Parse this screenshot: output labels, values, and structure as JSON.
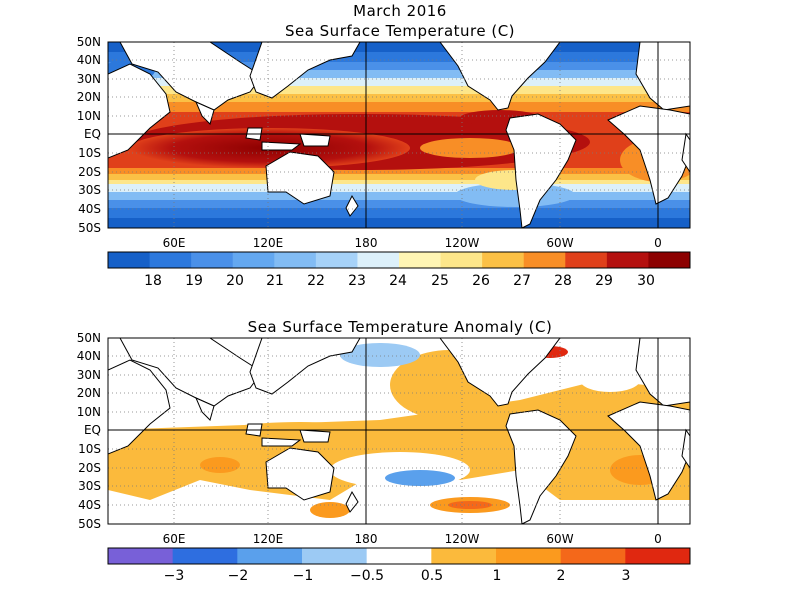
{
  "figure": {
    "month": "March 2016"
  },
  "maps": [
    {
      "id": "sst",
      "title": "Sea Surface Temperature (C)",
      "lat_labels": [
        "50N",
        "40N",
        "30N",
        "20N",
        "10N",
        "EQ",
        "10S",
        "20S",
        "30S",
        "40S",
        "50S"
      ],
      "lon_labels": [
        "60E",
        "120E",
        "180",
        "120W",
        "60W",
        "0"
      ],
      "colorbar": {
        "labels": [
          "18",
          "19",
          "20",
          "21",
          "22",
          "23",
          "24",
          "25",
          "26",
          "27",
          "28",
          "29",
          "30"
        ],
        "colors": [
          "#1660c8",
          "#2c78dc",
          "#4a90e8",
          "#64a8f0",
          "#82bcf4",
          "#a6d2f8",
          "#dcf0fa",
          "#fff5b4",
          "#fde68a",
          "#fbc045",
          "#f88e26",
          "#e0401a",
          "#b4100e",
          "#8c0000"
        ]
      }
    },
    {
      "id": "anomaly",
      "title": "Sea Surface Temperature Anomaly (C)",
      "lat_labels": [
        "50N",
        "40N",
        "30N",
        "20N",
        "10N",
        "EQ",
        "10S",
        "20S",
        "30S",
        "40S",
        "50S"
      ],
      "lon_labels": [
        "60E",
        "120E",
        "180",
        "120W",
        "60W",
        "0"
      ],
      "colorbar": {
        "labels": [
          "−3",
          "−2",
          "−1",
          "−0.5",
          "0.5",
          "1",
          "2",
          "3"
        ],
        "colors": [
          "#7860d8",
          "#2e6ee0",
          "#5aa0ec",
          "#9ccaf4",
          "#ffffff",
          "#fbba3c",
          "#fb9a1e",
          "#f4681a",
          "#e02810"
        ]
      }
    }
  ]
}
